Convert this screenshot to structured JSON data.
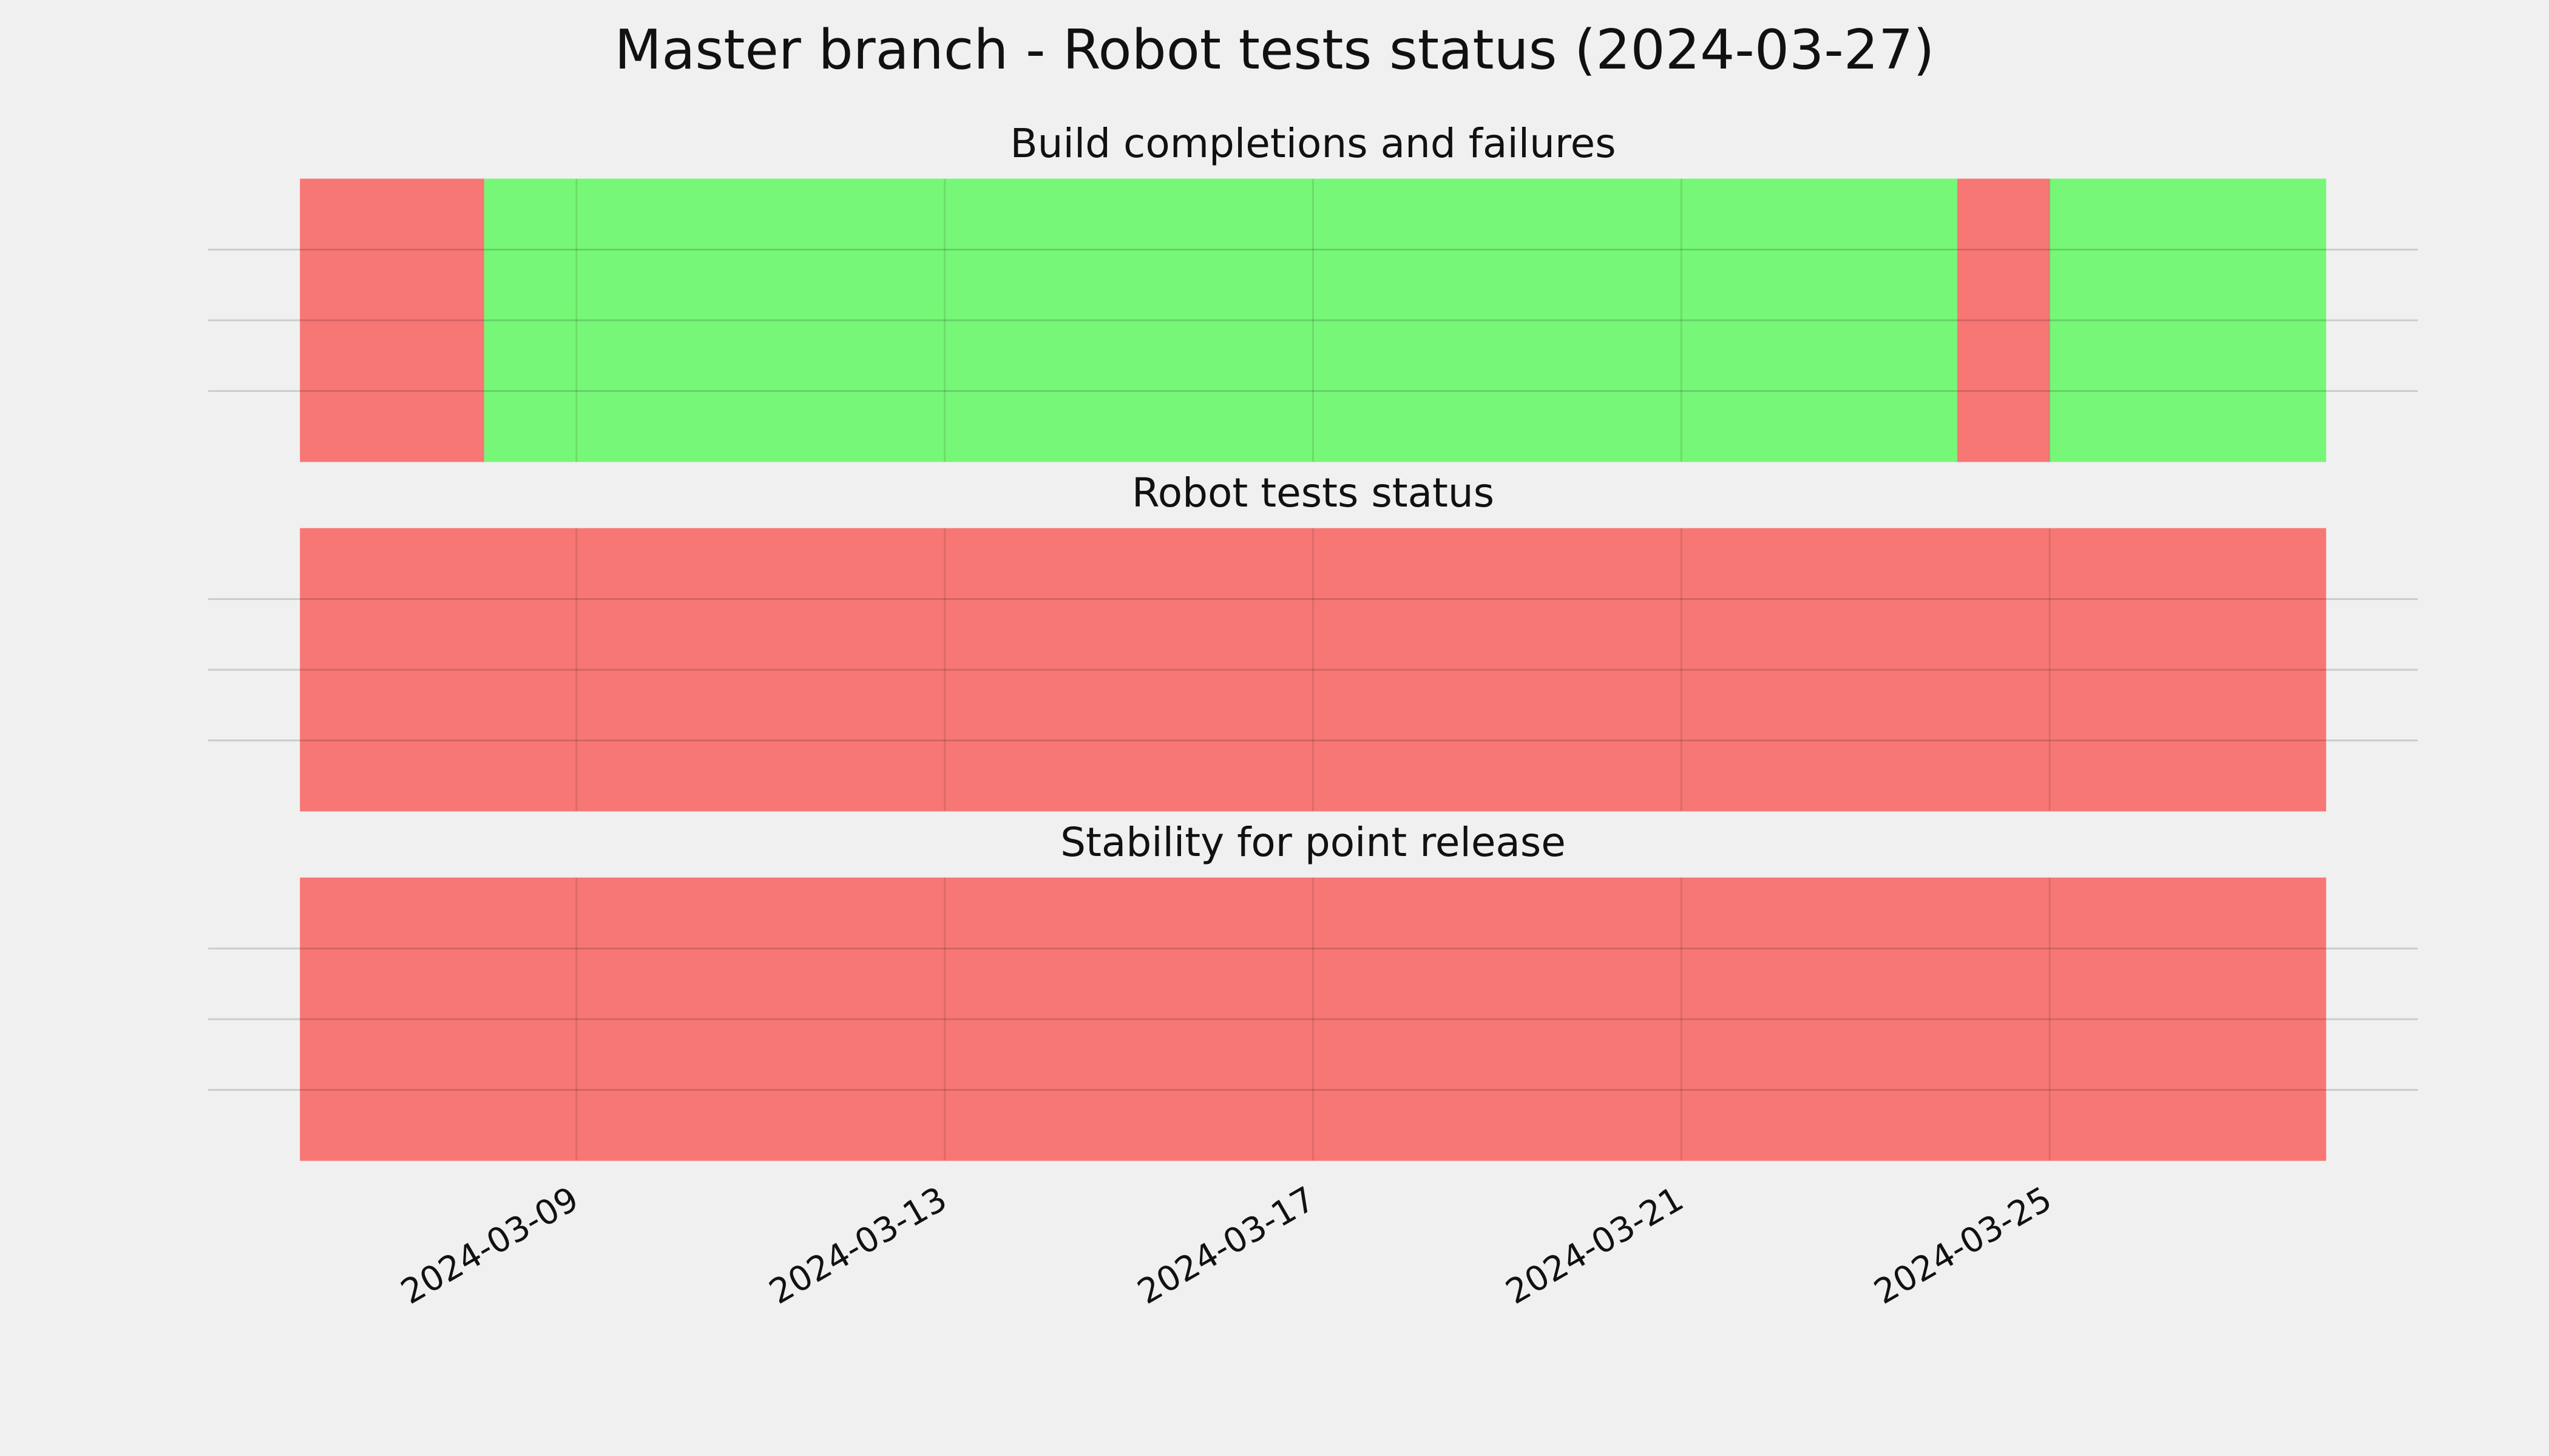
{
  "title": "Master branch - Robot tests status (2024-03-27)",
  "chart_data": [
    {
      "type": "span",
      "title": "Build completions and failures",
      "edges": [
        "2024-03-06",
        "2024-03-08",
        "2024-03-24",
        "2024-03-25",
        "2024-03-28"
      ],
      "colors": [
        "#f77775",
        "#77f777",
        "#f77775",
        "#77f777"
      ],
      "xlim": [
        "2024-03-05",
        "2024-03-29"
      ],
      "xticks": [
        "2024-03-09",
        "2024-03-13",
        "2024-03-17",
        "2024-03-21",
        "2024-03-25"
      ],
      "ylim": [
        0,
        1
      ],
      "yticks": [
        0.25,
        0.5,
        0.75
      ],
      "grid": true
    },
    {
      "type": "span",
      "title": "Robot tests status",
      "edges": [
        "2024-03-06",
        "2024-03-28"
      ],
      "colors": [
        "#f77775"
      ],
      "xlim": [
        "2024-03-05",
        "2024-03-29"
      ],
      "xticks": [
        "2024-03-09",
        "2024-03-13",
        "2024-03-17",
        "2024-03-21",
        "2024-03-25"
      ],
      "ylim": [
        0,
        1
      ],
      "yticks": [
        0.25,
        0.5,
        0.75
      ],
      "grid": true
    },
    {
      "type": "span",
      "title": "Stability for point release",
      "edges": [
        "2024-03-06",
        "2024-03-28"
      ],
      "colors": [
        "#f77775"
      ],
      "xlim": [
        "2024-03-05",
        "2024-03-29"
      ],
      "xticks": [
        "2024-03-09",
        "2024-03-13",
        "2024-03-17",
        "2024-03-21",
        "2024-03-25"
      ],
      "ylim": [
        0,
        1
      ],
      "yticks": [
        0.25,
        0.5,
        0.75
      ],
      "grid": true
    }
  ]
}
